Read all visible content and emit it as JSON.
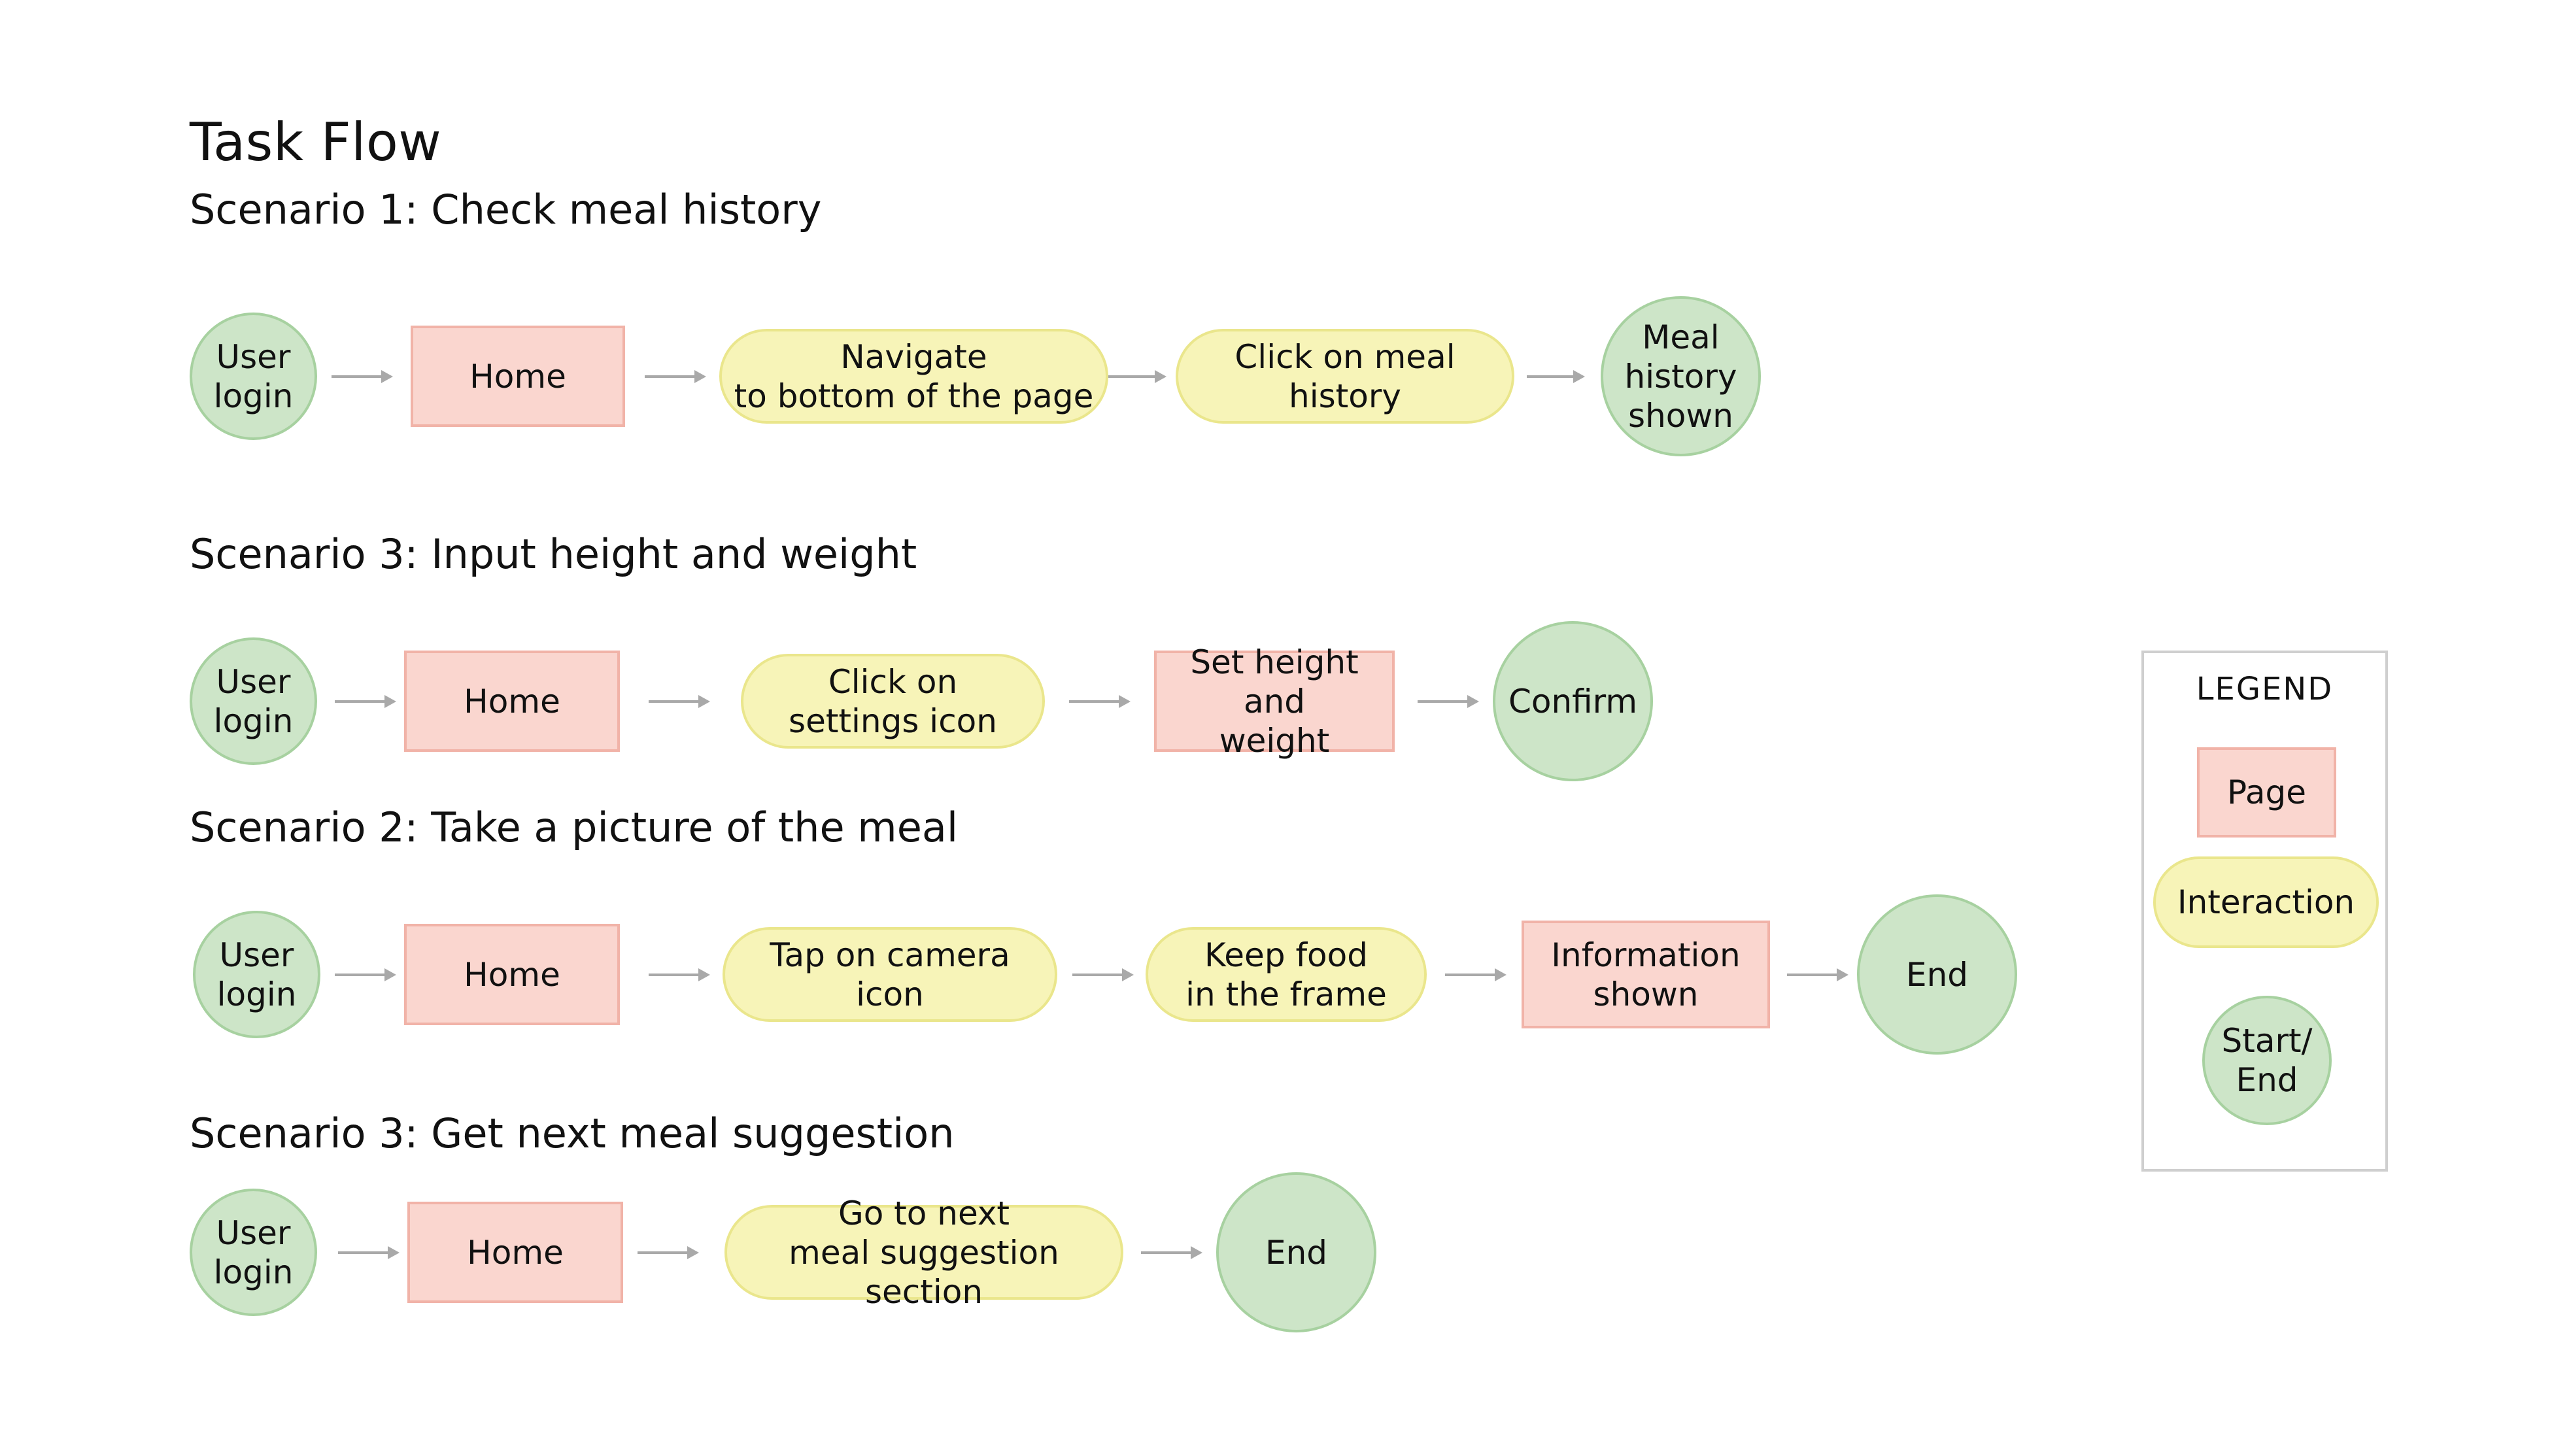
{
  "title": "Task Flow",
  "scenarios": [
    {
      "title": "Scenario 1: Check meal history",
      "steps": [
        {
          "label": "User\nlogin",
          "kind": "start"
        },
        {
          "label": "Home",
          "kind": "page"
        },
        {
          "label": "Navigate\nto bottom of the page",
          "kind": "interaction"
        },
        {
          "label": "Click on meal history",
          "kind": "interaction"
        },
        {
          "label": "Meal\nhistory\nshown",
          "kind": "start"
        }
      ]
    },
    {
      "title": "Scenario 3: Input height and weight",
      "steps": [
        {
          "label": "User\nlogin",
          "kind": "start"
        },
        {
          "label": "Home",
          "kind": "page"
        },
        {
          "label": "Click on\nsettings icon",
          "kind": "interaction"
        },
        {
          "label": "Set height and\nweight",
          "kind": "page"
        },
        {
          "label": "Confirm",
          "kind": "start"
        }
      ]
    },
    {
      "title": "Scenario 2: Take a picture of the meal",
      "steps": [
        {
          "label": "User\nlogin",
          "kind": "start"
        },
        {
          "label": "Home",
          "kind": "page"
        },
        {
          "label": "Tap on camera\nicon",
          "kind": "interaction"
        },
        {
          "label": "Keep food\nin the frame",
          "kind": "interaction"
        },
        {
          "label": "Information\nshown",
          "kind": "page"
        },
        {
          "label": "End",
          "kind": "start"
        }
      ]
    },
    {
      "title": "Scenario 3: Get next meal suggestion",
      "steps": [
        {
          "label": "User\nlogin",
          "kind": "start"
        },
        {
          "label": "Home",
          "kind": "page"
        },
        {
          "label": "Go to next\nmeal suggestion section",
          "kind": "interaction"
        },
        {
          "label": "End",
          "kind": "start"
        }
      ]
    }
  ],
  "legend": {
    "title": "LEGEND",
    "items": [
      {
        "label": "Page",
        "kind": "page"
      },
      {
        "label": "Interaction",
        "kind": "interaction"
      },
      {
        "label": "Start/\nEnd",
        "kind": "start"
      }
    ]
  },
  "colors": {
    "page_fill": "#fad6cf",
    "page_border": "#f1b3a8",
    "interaction_fill": "#f7f4b8",
    "interaction_border": "#eae68c",
    "start_end_fill": "#cde5c8",
    "start_end_border": "#a7d1a0",
    "arrow": "#a9a9a9"
  }
}
